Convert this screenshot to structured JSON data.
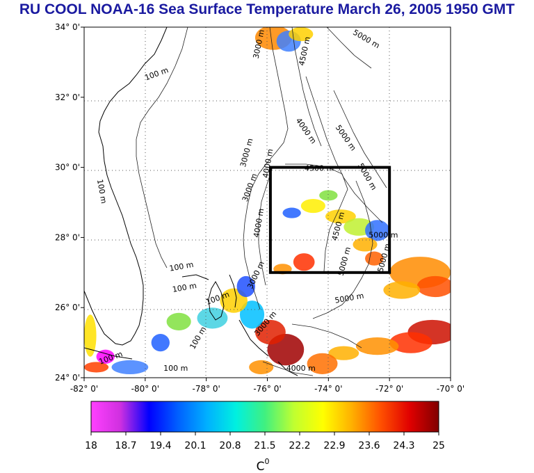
{
  "title": "RU COOL  NOAA-16 Sea Surface Temperature March 26, 2005 1950 GMT",
  "map": {
    "lon_ticks": [
      "-82° 0'",
      "-80° 0'",
      "-78° 0'",
      "-76° 0'",
      "-74° 0'",
      "-72° 0'",
      "-70° 0'"
    ],
    "lat_ticks": [
      "34° 0'",
      "32° 0'",
      "30° 0'",
      "28° 0'",
      "26° 0'",
      "24° 0'"
    ],
    "lon_range": [
      -82,
      -70
    ],
    "lat_range": [
      24,
      34
    ],
    "study_box": {
      "lon": [
        -75.9,
        -72
      ],
      "lat": [
        27,
        30
      ]
    },
    "contour_labels": [
      {
        "text": "100 m",
        "lon": -79.6,
        "lat": 32.6,
        "rot": -20
      },
      {
        "text": "100 m",
        "lon": -81.5,
        "lat": 29.3,
        "rot": 80
      },
      {
        "text": "3000 m",
        "lon": -76.2,
        "lat": 33.5,
        "rot": -78
      },
      {
        "text": "4500 m",
        "lon": -74.7,
        "lat": 33.3,
        "rot": -78
      },
      {
        "text": "5000 m",
        "lon": -72.8,
        "lat": 33.6,
        "rot": 30
      },
      {
        "text": "4000 m",
        "lon": -74.8,
        "lat": 31.0,
        "rot": 55
      },
      {
        "text": "5000 m",
        "lon": -73.5,
        "lat": 30.8,
        "rot": 55
      },
      {
        "text": "3000 m",
        "lon": -76.6,
        "lat": 30.4,
        "rot": -75
      },
      {
        "text": "4000 m",
        "lon": -75.9,
        "lat": 30.1,
        "rot": -80
      },
      {
        "text": "4500 m",
        "lon": -74.3,
        "lat": 29.9,
        "rot": 0
      },
      {
        "text": "5000 m",
        "lon": -72.8,
        "lat": 29.7,
        "rot": 60
      },
      {
        "text": "3000 m",
        "lon": -76.5,
        "lat": 29.4,
        "rot": -70
      },
      {
        "text": "4000 m",
        "lon": -76.2,
        "lat": 28.4,
        "rot": -80
      },
      {
        "text": "4500 m",
        "lon": -73.6,
        "lat": 28.3,
        "rot": -75
      },
      {
        "text": "5000 m",
        "lon": -72.2,
        "lat": 28.0,
        "rot": 0
      },
      {
        "text": "5000 m",
        "lon": -73.4,
        "lat": 27.3,
        "rot": -75
      },
      {
        "text": "5000 m",
        "lon": -72.1,
        "lat": 27.4,
        "rot": -75
      },
      {
        "text": "100 m",
        "lon": -78.8,
        "lat": 27.1,
        "rot": -10
      },
      {
        "text": "3000 m",
        "lon": -76.3,
        "lat": 26.9,
        "rot": -65
      },
      {
        "text": "100 m",
        "lon": -78.7,
        "lat": 26.5,
        "rot": -10
      },
      {
        "text": "100 m",
        "lon": -77.6,
        "lat": 26.2,
        "rot": -20
      },
      {
        "text": "100 m",
        "lon": -78.2,
        "lat": 25.1,
        "rot": -60
      },
      {
        "text": "5000 m",
        "lon": -73.3,
        "lat": 26.2,
        "rot": -10
      },
      {
        "text": "3000 m",
        "lon": -76.0,
        "lat": 25.5,
        "rot": -50
      },
      {
        "text": "100 m",
        "lon": -81.1,
        "lat": 24.5,
        "rot": -20
      },
      {
        "text": "100 m",
        "lon": -79.0,
        "lat": 24.2,
        "rot": 0
      },
      {
        "text": "4000 m",
        "lon": -74.9,
        "lat": 24.2,
        "rot": 0
      }
    ]
  },
  "colorbar": {
    "labels": [
      "18",
      "18.7",
      "19.4",
      "20.1",
      "20.8",
      "21.5",
      "22.2",
      "22.9",
      "23.6",
      "24.3",
      "25"
    ],
    "unit": "C",
    "unit_superscript": "0",
    "stops": [
      "#ff40ff",
      "#d030e0",
      "#0000ff",
      "#0060ff",
      "#00b0ff",
      "#00f0e0",
      "#40f080",
      "#c0ff30",
      "#ffff00",
      "#ffb000",
      "#ff5000",
      "#e00000",
      "#800000"
    ]
  },
  "sst_patches": [
    {
      "lon": -75.8,
      "lat": 33.7,
      "rx": 0.6,
      "ry": 0.35,
      "color": "#ff8800"
    },
    {
      "lon": -75.3,
      "lat": 33.6,
      "rx": 0.4,
      "ry": 0.3,
      "color": "#4080ff"
    },
    {
      "lon": -74.9,
      "lat": 33.8,
      "rx": 0.4,
      "ry": 0.2,
      "color": "#ffd000"
    },
    {
      "lon": -75.2,
      "lat": 28.7,
      "rx": 0.3,
      "ry": 0.15,
      "color": "#2060ff"
    },
    {
      "lon": -74.5,
      "lat": 28.9,
      "rx": 0.4,
      "ry": 0.2,
      "color": "#ffee00"
    },
    {
      "lon": -74.0,
      "lat": 29.2,
      "rx": 0.3,
      "ry": 0.15,
      "color": "#80e040"
    },
    {
      "lon": -73.6,
      "lat": 28.6,
      "rx": 0.5,
      "ry": 0.2,
      "color": "#ffd000"
    },
    {
      "lon": -73.0,
      "lat": 28.3,
      "rx": 0.5,
      "ry": 0.25,
      "color": "#c0f030"
    },
    {
      "lon": -72.4,
      "lat": 28.2,
      "rx": 0.4,
      "ry": 0.3,
      "color": "#3070ff"
    },
    {
      "lon": -72.8,
      "lat": 27.8,
      "rx": 0.4,
      "ry": 0.2,
      "color": "#ffb000"
    },
    {
      "lon": -72.5,
      "lat": 27.4,
      "rx": 0.3,
      "ry": 0.2,
      "color": "#ff6000"
    },
    {
      "lon": -74.8,
      "lat": 27.3,
      "rx": 0.35,
      "ry": 0.25,
      "color": "#ff3000"
    },
    {
      "lon": -75.5,
      "lat": 27.1,
      "rx": 0.3,
      "ry": 0.15,
      "color": "#ff9000"
    },
    {
      "lon": -71.0,
      "lat": 27.0,
      "rx": 1.0,
      "ry": 0.45,
      "color": "#ff8c00"
    },
    {
      "lon": -70.5,
      "lat": 26.6,
      "rx": 0.6,
      "ry": 0.3,
      "color": "#ff5000"
    },
    {
      "lon": -71.6,
      "lat": 26.5,
      "rx": 0.6,
      "ry": 0.25,
      "color": "#ffb000"
    },
    {
      "lon": -70.6,
      "lat": 25.3,
      "rx": 0.8,
      "ry": 0.35,
      "color": "#cc1000"
    },
    {
      "lon": -71.3,
      "lat": 25.0,
      "rx": 0.7,
      "ry": 0.3,
      "color": "#ff3000"
    },
    {
      "lon": -72.4,
      "lat": 24.9,
      "rx": 0.7,
      "ry": 0.25,
      "color": "#ff9000"
    },
    {
      "lon": -73.5,
      "lat": 24.7,
      "rx": 0.5,
      "ry": 0.2,
      "color": "#ffb000"
    },
    {
      "lon": -74.2,
      "lat": 24.4,
      "rx": 0.5,
      "ry": 0.3,
      "color": "#ff7000"
    },
    {
      "lon": -75.4,
      "lat": 24.8,
      "rx": 0.6,
      "ry": 0.45,
      "color": "#a00000"
    },
    {
      "lon": -75.9,
      "lat": 25.3,
      "rx": 0.5,
      "ry": 0.35,
      "color": "#e02000"
    },
    {
      "lon": -76.5,
      "lat": 25.8,
      "rx": 0.4,
      "ry": 0.4,
      "color": "#00c0ff"
    },
    {
      "lon": -77.1,
      "lat": 26.2,
      "rx": 0.45,
      "ry": 0.35,
      "color": "#ffd000"
    },
    {
      "lon": -76.7,
      "lat": 26.6,
      "rx": 0.3,
      "ry": 0.3,
      "color": "#2050ff"
    },
    {
      "lon": -77.8,
      "lat": 25.7,
      "rx": 0.5,
      "ry": 0.3,
      "color": "#40d0e0"
    },
    {
      "lon": -78.9,
      "lat": 25.6,
      "rx": 0.4,
      "ry": 0.25,
      "color": "#80e040"
    },
    {
      "lon": -79.5,
      "lat": 25.0,
      "rx": 0.3,
      "ry": 0.25,
      "color": "#2060ff"
    },
    {
      "lon": -80.5,
      "lat": 24.3,
      "rx": 0.6,
      "ry": 0.2,
      "color": "#4080ff"
    },
    {
      "lon": -81.6,
      "lat": 24.3,
      "rx": 0.4,
      "ry": 0.15,
      "color": "#ff4000"
    },
    {
      "lon": -81.8,
      "lat": 25.2,
      "rx": 0.2,
      "ry": 0.6,
      "color": "#ffe000"
    },
    {
      "lon": -81.3,
      "lat": 24.6,
      "rx": 0.3,
      "ry": 0.2,
      "color": "#ff00ff"
    },
    {
      "lon": -76.2,
      "lat": 24.3,
      "rx": 0.4,
      "ry": 0.2,
      "color": "#ff9000"
    }
  ]
}
